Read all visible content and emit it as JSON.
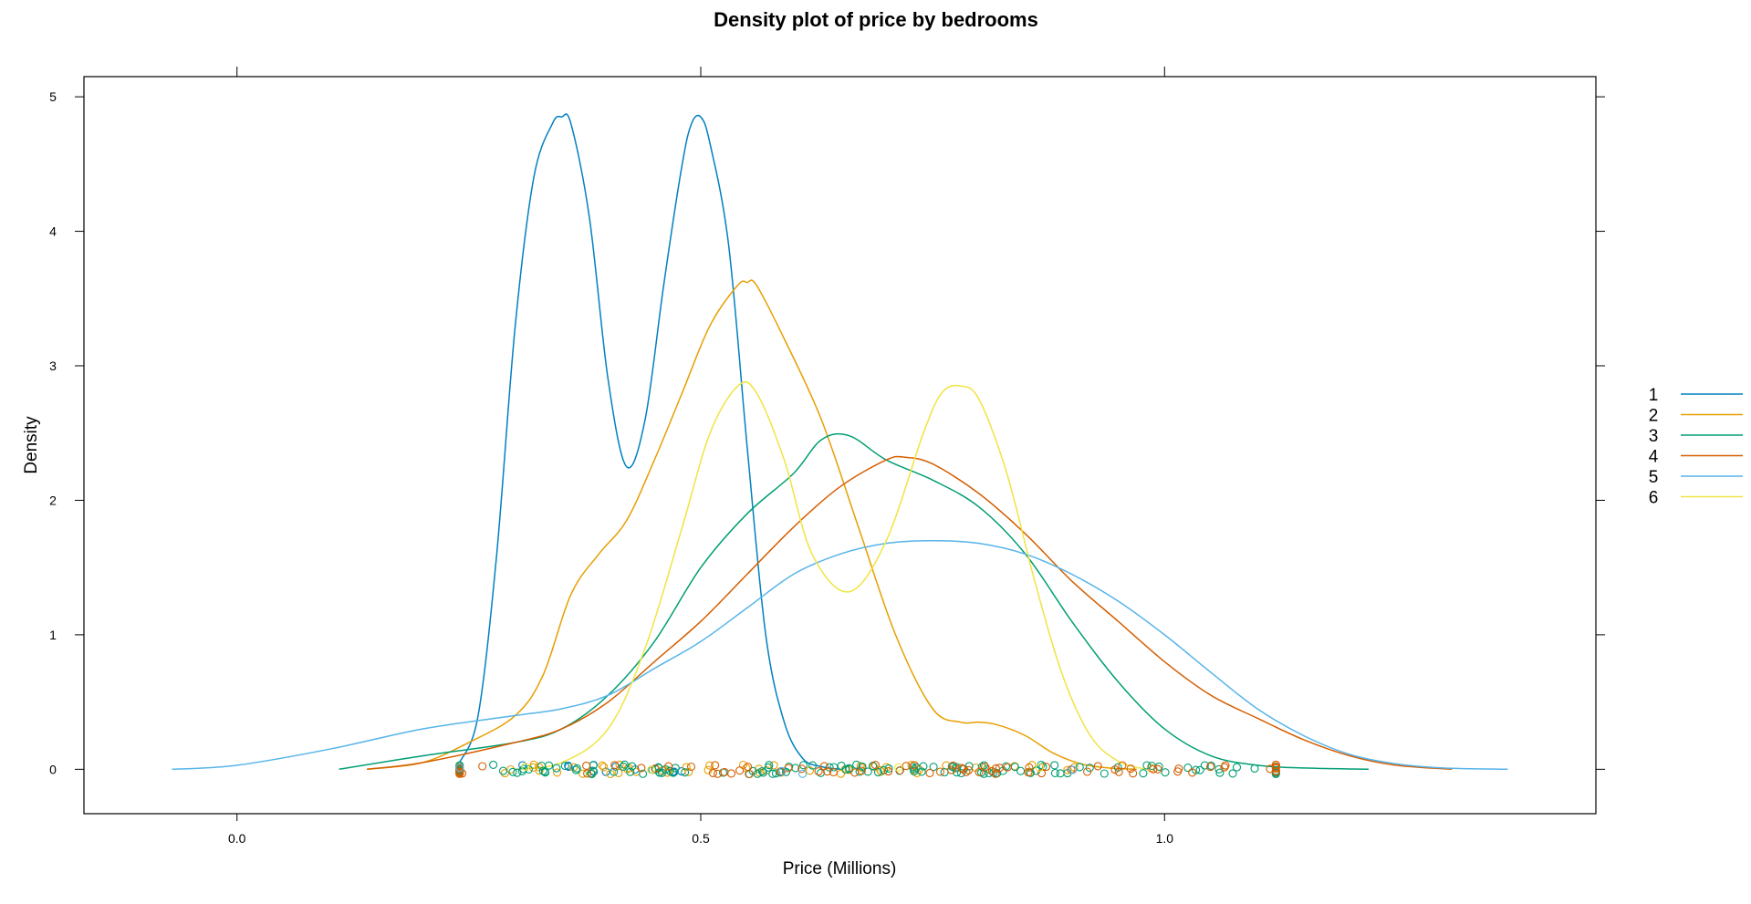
{
  "chart_data": {
    "type": "line",
    "title": "Density plot of price by bedrooms",
    "xlabel": "Price (Millions)",
    "ylabel": "Density",
    "xlim": [
      -0.165,
      1.465
    ],
    "ylim": [
      -0.33,
      5.15
    ],
    "x_ticks": [
      0.0,
      0.5,
      1.0
    ],
    "x_tick_labels": [
      "0.0",
      "0.5",
      "1.0"
    ],
    "y_ticks": [
      0,
      1,
      2,
      3,
      4,
      5
    ],
    "y_tick_labels": [
      "0",
      "1",
      "2",
      "3",
      "4",
      "5"
    ],
    "legend_position": "right",
    "series": [
      {
        "name": "1",
        "color": "#0080C0",
        "x": [
          0.24,
          0.26,
          0.28,
          0.3,
          0.32,
          0.34,
          0.35,
          0.36,
          0.38,
          0.4,
          0.42,
          0.44,
          0.46,
          0.48,
          0.49,
          0.5,
          0.51,
          0.53,
          0.55,
          0.57,
          0.59,
          0.61,
          0.63,
          0.65
        ],
        "y": [
          0.05,
          0.4,
          1.6,
          3.3,
          4.4,
          4.8,
          4.85,
          4.8,
          4.1,
          2.9,
          2.25,
          2.6,
          3.6,
          4.5,
          4.8,
          4.85,
          4.65,
          3.9,
          2.4,
          1.0,
          0.35,
          0.08,
          0.02,
          0.0
        ]
      },
      {
        "name": "2",
        "color": "#E69F00",
        "x": [
          0.14,
          0.2,
          0.25,
          0.3,
          0.33,
          0.36,
          0.39,
          0.42,
          0.45,
          0.48,
          0.51,
          0.54,
          0.55,
          0.56,
          0.59,
          0.63,
          0.67,
          0.71,
          0.75,
          0.78,
          0.8,
          0.82,
          0.85,
          0.88,
          0.91,
          0.94,
          0.97
        ],
        "y": [
          0.0,
          0.05,
          0.2,
          0.4,
          0.7,
          1.3,
          1.6,
          1.85,
          2.3,
          2.8,
          3.3,
          3.6,
          3.62,
          3.6,
          3.2,
          2.6,
          1.8,
          1.0,
          0.45,
          0.35,
          0.35,
          0.33,
          0.25,
          0.12,
          0.04,
          0.01,
          0.0
        ]
      },
      {
        "name": "3",
        "color": "#009E73",
        "x": [
          0.11,
          0.2,
          0.3,
          0.35,
          0.4,
          0.45,
          0.5,
          0.55,
          0.6,
          0.63,
          0.66,
          0.7,
          0.75,
          0.8,
          0.85,
          0.9,
          0.95,
          1.0,
          1.05,
          1.1,
          1.15,
          1.22
        ],
        "y": [
          0.0,
          0.1,
          0.2,
          0.3,
          0.55,
          0.95,
          1.5,
          1.9,
          2.2,
          2.45,
          2.48,
          2.3,
          2.15,
          1.95,
          1.6,
          1.1,
          0.65,
          0.3,
          0.1,
          0.03,
          0.01,
          0.0
        ]
      },
      {
        "name": "4",
        "color": "#D55E00",
        "x": [
          0.14,
          0.2,
          0.3,
          0.35,
          0.4,
          0.45,
          0.5,
          0.55,
          0.6,
          0.65,
          0.7,
          0.72,
          0.75,
          0.8,
          0.85,
          0.9,
          0.95,
          1.0,
          1.05,
          1.1,
          1.15,
          1.2,
          1.25,
          1.31
        ],
        "y": [
          0.0,
          0.05,
          0.2,
          0.3,
          0.5,
          0.8,
          1.1,
          1.45,
          1.8,
          2.1,
          2.3,
          2.32,
          2.27,
          2.05,
          1.75,
          1.4,
          1.1,
          0.8,
          0.55,
          0.38,
          0.22,
          0.1,
          0.03,
          0.0
        ]
      },
      {
        "name": "5",
        "color": "#56B4E9",
        "x": [
          -0.07,
          0.0,
          0.1,
          0.2,
          0.3,
          0.35,
          0.4,
          0.45,
          0.5,
          0.55,
          0.6,
          0.65,
          0.7,
          0.75,
          0.8,
          0.85,
          0.9,
          0.95,
          1.0,
          1.05,
          1.1,
          1.15,
          1.2,
          1.25,
          1.3,
          1.37
        ],
        "y": [
          0.0,
          0.03,
          0.15,
          0.3,
          0.4,
          0.45,
          0.55,
          0.75,
          0.95,
          1.2,
          1.45,
          1.6,
          1.68,
          1.7,
          1.68,
          1.6,
          1.45,
          1.25,
          1.0,
          0.72,
          0.45,
          0.25,
          0.11,
          0.04,
          0.01,
          0.0
        ]
      },
      {
        "name": "6",
        "color": "#F0E442",
        "x": [
          0.3,
          0.35,
          0.4,
          0.44,
          0.48,
          0.51,
          0.54,
          0.56,
          0.59,
          0.62,
          0.66,
          0.7,
          0.74,
          0.76,
          0.78,
          0.8,
          0.83,
          0.86,
          0.89,
          0.92,
          0.95,
          0.98
        ],
        "y": [
          0.0,
          0.05,
          0.3,
          0.9,
          1.8,
          2.5,
          2.85,
          2.8,
          2.3,
          1.6,
          1.32,
          1.7,
          2.5,
          2.8,
          2.85,
          2.75,
          2.2,
          1.4,
          0.7,
          0.25,
          0.06,
          0.0
        ]
      }
    ]
  }
}
